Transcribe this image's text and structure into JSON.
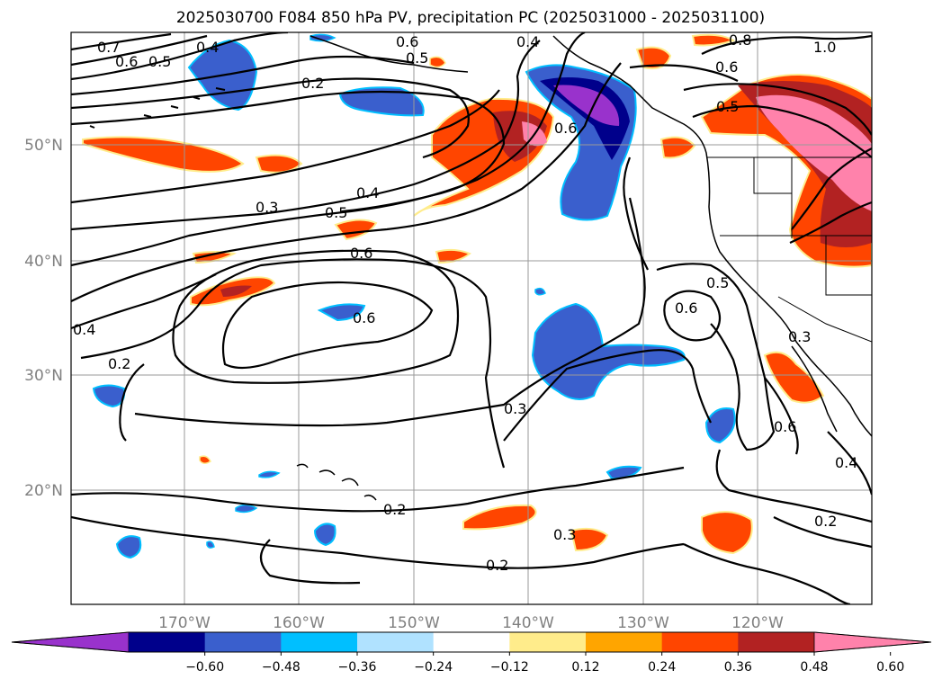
{
  "title": "2025030700 F084 850 hPa PV, precipitation PC (2025031000 - 2025031100)",
  "map": {
    "lat_labels": [
      "50°N",
      "40°N",
      "30°N",
      "20°N"
    ],
    "lon_labels": [
      "170°W",
      "160°W",
      "150°W",
      "140°W",
      "130°W",
      "120°W"
    ],
    "grid": true,
    "pv_contour_labels": [
      "0.7",
      "0.6",
      "0.5",
      "0.4",
      "0.2",
      "0.6",
      "0.5",
      "0.4",
      "0.8",
      "0.6",
      "1.0",
      "0.5",
      "0.6",
      "0.3",
      "0.4",
      "0.5",
      "0.6",
      "0.6",
      "0.4",
      "0.2",
      "0.6",
      "0.5",
      "0.3",
      "0.3",
      "0.6",
      "0.2",
      "0.3",
      "0.2",
      "0.2",
      "0.4"
    ]
  },
  "colorbar": {
    "ticks": [
      "−0.60",
      "−0.48",
      "−0.36",
      "−0.24",
      "−0.12",
      "0.12",
      "0.24",
      "0.36",
      "0.48",
      "0.60"
    ],
    "colors": [
      "#9932CC",
      "#00008B",
      "#3A5FCD",
      "#00BFFF",
      "#B0E2FF",
      "#FFFFFF",
      "#FFEC8B",
      "#FFA500",
      "#FF4500",
      "#B22222",
      "#FF82AB"
    ]
  }
}
